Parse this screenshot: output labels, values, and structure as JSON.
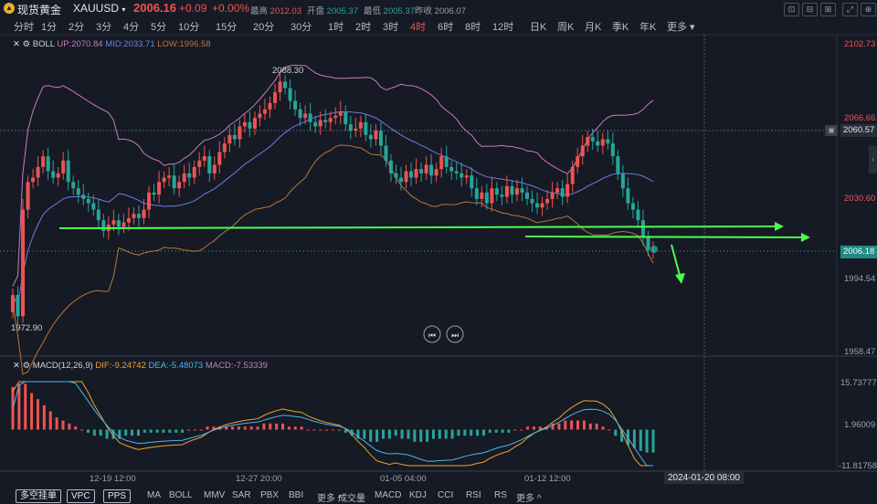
{
  "header": {
    "symbol_name": "现货黄金",
    "symbol_code": "XAUUSD",
    "price": "2006.16",
    "change": "+0.09",
    "change_pct": "+0.00%",
    "high_label": "最高",
    "high": "2012.03",
    "open_label": "开盘",
    "open": "2005.37",
    "low_label": "最低",
    "low": "2005.37",
    "prev_label": "昨收",
    "prev": "2006.07",
    "buttons": [
      "⊡",
      "⊟",
      "⊞",
      "⤢",
      "⊕"
    ]
  },
  "timeframes": [
    "分时",
    "1分",
    "2分",
    "3分",
    "4分",
    "5分",
    "10分",
    "15分",
    "20分",
    "30分",
    "1时",
    "2时",
    "3时",
    "4时",
    "6时",
    "8时",
    "12时",
    "日K",
    "周K",
    "月K",
    "季K",
    "年K",
    "更多"
  ],
  "active_timeframe": "4时",
  "boll": {
    "label": "BOLL",
    "up": "UP:2070.84",
    "mid": "MID:2033.71",
    "low": "LOW:1996.58"
  },
  "macd": {
    "label": "MACD(12,26,9)",
    "dif": "DIF:-9.24742",
    "dea": "DEA:-5.48073",
    "macd": "MACD:-7.53339"
  },
  "price_axis": [
    "2102.73",
    "2066.66",
    "2030.60",
    "1994.54",
    "1958.47"
  ],
  "price_tags": {
    "crosshair": "2060.57",
    "current": "2006.18"
  },
  "macd_axis": [
    "15.73777",
    "1.96009",
    "-11.81758"
  ],
  "annotations": {
    "high": "2088.30",
    "low": "1972.90"
  },
  "x_labels": [
    "12-19 12:00",
    "12-27 20:00",
    "01-05 04:00",
    "01-12 12:00"
  ],
  "crosshair_time": "2024-01-20 08:00",
  "bottom_left_buttons": [
    "多空挂单",
    "VPC",
    "PPS"
  ],
  "main_indicators": [
    "MA",
    "BOLL",
    "MMV",
    "SAR",
    "PBX",
    "BBI",
    "更多 ^"
  ],
  "sub_indicators": [
    "成交量",
    "MACD",
    "KDJ",
    "CCI",
    "RSI",
    "RS",
    "更多 ^"
  ],
  "colors": {
    "up": "#ef5350",
    "down": "#26a69a",
    "boll_up": "#c77dba",
    "boll_mid": "#6f7ce0",
    "boll_low": "#b8763a",
    "arrow": "#4cff4c",
    "dif": "#f0a030",
    "dea": "#4ab8e8"
  },
  "chart_data": {
    "type": "candlestick",
    "y_range": [
      1958.47,
      2102.73
    ],
    "closes": [
      1985,
      1975,
      2025,
      2038,
      2040,
      2045,
      2050,
      2043,
      2040,
      2042,
      2048,
      2038,
      2035,
      2032,
      2030,
      2028,
      2025,
      2020,
      2015,
      2018,
      2020,
      2017,
      2019,
      2021,
      2023,
      2021,
      2025,
      2033,
      2032,
      2038,
      2040,
      2041,
      2035,
      2038,
      2042,
      2040,
      2045,
      2048,
      2050,
      2042,
      2046,
      2052,
      2056,
      2060,
      2058,
      2064,
      2066,
      2063,
      2068,
      2070,
      2072,
      2075,
      2080,
      2085,
      2082,
      2076,
      2072,
      2068,
      2070,
      2066,
      2064,
      2067,
      2066,
      2068,
      2069,
      2071,
      2065,
      2062,
      2063,
      2066,
      2060,
      2058,
      2062,
      2055,
      2048,
      2042,
      2040,
      2038,
      2043,
      2040,
      2044,
      2042,
      2046,
      2041,
      2044,
      2050,
      2045,
      2043,
      2042,
      2040,
      2041,
      2035,
      2030,
      2033,
      2028,
      2035,
      2032,
      2031,
      2036,
      2032,
      2035,
      2033,
      2030,
      2028,
      2026,
      2028,
      2030,
      2033,
      2035,
      2031,
      2037,
      2045,
      2050,
      2055,
      2059,
      2057,
      2055,
      2058,
      2056,
      2050,
      2042,
      2035,
      2028,
      2025,
      2020,
      2012,
      2006,
      2006.16
    ],
    "macd_hist": [
      14,
      15,
      15,
      12,
      10,
      8,
      6,
      4,
      3,
      2,
      1,
      0,
      -1,
      -2,
      -2,
      -3,
      -3,
      -3,
      -2,
      -2,
      -2,
      -1,
      -1,
      -1,
      -1,
      -1,
      -1,
      -1,
      0,
      0,
      0,
      1,
      1,
      1,
      1,
      1,
      1,
      1,
      1,
      1,
      2,
      2,
      2,
      2,
      1,
      1,
      1,
      0,
      0,
      0,
      0,
      0,
      0,
      -1,
      -2,
      -3,
      -3,
      -4,
      -4,
      -3,
      -3,
      -2,
      -3,
      -3,
      -4,
      -4,
      -4,
      -3,
      -3,
      -3,
      -3,
      -2,
      -2,
      -2,
      -2,
      -2,
      -1,
      -1,
      -1,
      -1,
      0,
      0,
      1,
      1,
      1,
      1,
      2,
      2,
      3,
      3,
      3,
      3,
      2,
      2,
      1,
      0,
      -2,
      -4,
      -5,
      -6,
      -7,
      -7.5,
      -7.53
    ]
  }
}
